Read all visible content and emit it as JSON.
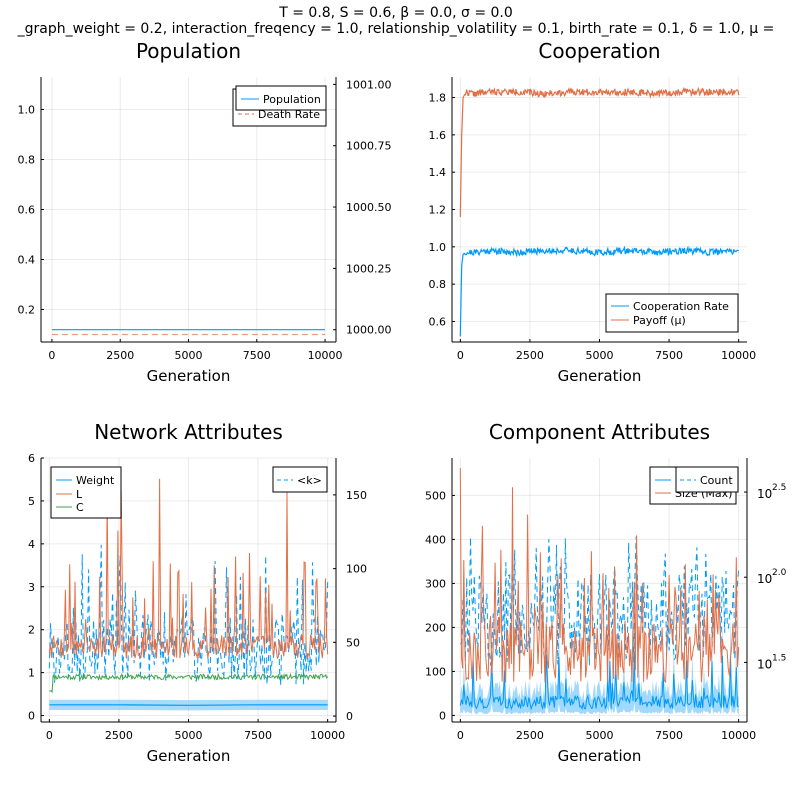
{
  "figure": {
    "title_line1": "T = 0.8, S = 0.6, β = 0.0, σ = 0.0",
    "title_line2": "_graph_weight = 0.2, interaction_freqency = 1.0, relationship_volatility = 0.1, birth_rate = 0.1, δ = 1.0, μ ="
  },
  "colors": {
    "blue": "#009AFA",
    "orange": "#E26F46",
    "green": "#3EA44E",
    "band": "#80CCFA"
  },
  "chart_data": [
    {
      "type": "line",
      "title": "Population",
      "xlabel": "Generation",
      "xlim": [
        -400,
        10400
      ],
      "xticks": [
        0,
        2500,
        5000,
        7500,
        10000
      ],
      "xtick_labels": [
        "0",
        "2500",
        "5000",
        "7500",
        "10000"
      ],
      "ylim": [
        0.07,
        1.13
      ],
      "yticks": [
        0.2,
        0.4,
        0.6,
        0.8,
        1.0
      ],
      "ytick_labels": [
        "0.2",
        "0.4",
        "0.6",
        "0.8",
        "1.0"
      ],
      "y2lim": [
        999.95,
        1001.03
      ],
      "y2ticks": [
        1000.0,
        1000.25,
        1000.5,
        1000.75,
        1001.0
      ],
      "y2tick_labels": [
        "1000.00",
        "1000.25",
        "1000.50",
        "1000.75",
        "1001.00"
      ],
      "series": [
        {
          "name": "Population",
          "axis": "right",
          "style": "solid",
          "x": [
            0,
            10000
          ],
          "values": [
            1000.0,
            1000.0
          ]
        },
        {
          "name": "Death Rate",
          "axis": "left",
          "style": "dashed",
          "x": [
            0,
            10000
          ],
          "values": [
            0.1,
            0.1
          ]
        }
      ],
      "legend": "top-right"
    },
    {
      "type": "line",
      "title": "Cooperation",
      "xlabel": "Generation",
      "xlim": [
        -300,
        10300
      ],
      "xticks": [
        0,
        2500,
        5000,
        7500,
        10000
      ],
      "xtick_labels": [
        "0",
        "2500",
        "5000",
        "7500",
        "10000"
      ],
      "ylim": [
        0.49,
        1.91
      ],
      "yticks": [
        0.6,
        0.8,
        1.0,
        1.2,
        1.4,
        1.6,
        1.8
      ],
      "ytick_labels": [
        "0.6",
        "0.8",
        "1.0",
        "1.2",
        "1.4",
        "1.6",
        "1.8"
      ],
      "series": [
        {
          "name": "Cooperation Rate",
          "x": [
            0,
            50,
            100,
            200,
            500,
            1000,
            2000,
            3000,
            4000,
            5000,
            6000,
            7000,
            8000,
            9000,
            10000
          ],
          "values": [
            0.52,
            0.9,
            0.96,
            0.97,
            0.97,
            0.98,
            0.97,
            0.98,
            0.98,
            0.97,
            0.98,
            0.97,
            0.98,
            0.97,
            0.98
          ]
        },
        {
          "name": "Payoff (μ)",
          "x": [
            0,
            50,
            100,
            200,
            500,
            1000,
            2000,
            3000,
            4000,
            5000,
            6000,
            7000,
            8000,
            9000,
            10000
          ],
          "values": [
            1.16,
            1.6,
            1.8,
            1.83,
            1.82,
            1.83,
            1.83,
            1.82,
            1.83,
            1.83,
            1.83,
            1.82,
            1.83,
            1.83,
            1.83
          ]
        }
      ],
      "legend": "bottom-right"
    },
    {
      "type": "line",
      "title": "Network Attributes",
      "xlabel": "Generation",
      "xlim": [
        -300,
        10300
      ],
      "xticks": [
        0,
        2500,
        5000,
        7500,
        10000
      ],
      "xtick_labels": [
        "0",
        "2500",
        "5000",
        "7500",
        "10000"
      ],
      "ylim": [
        -0.15,
        6.0
      ],
      "yticks": [
        0,
        1,
        2,
        3,
        4,
        5,
        6
      ],
      "ytick_labels": [
        "0",
        "1",
        "2",
        "3",
        "4",
        "5",
        "6"
      ],
      "y2lim": [
        -4,
        175
      ],
      "y2ticks": [
        0,
        50,
        100,
        150
      ],
      "y2tick_labels": [
        "0",
        "50",
        "100",
        "150"
      ],
      "series": [
        {
          "name": "Weight",
          "axis": "left",
          "style": "band",
          "x": [
            0,
            2500,
            5000,
            7500,
            10000
          ],
          "values": [
            0.25,
            0.25,
            0.24,
            0.25,
            0.25
          ],
          "band": 0.12
        },
        {
          "name": "L",
          "axis": "left",
          "style": "spiky",
          "seed": 7,
          "base": 1.6,
          "range": [
            1.15,
            5.6
          ],
          "x": [
            0,
            10000
          ]
        },
        {
          "name": "C",
          "axis": "left",
          "style": "noisy",
          "seed": 11,
          "base": 0.9,
          "range": [
            0.55,
            1.0
          ],
          "x": [
            0,
            10000
          ]
        },
        {
          "name": "<k>",
          "axis": "right",
          "style": "dashed-spiky",
          "seed": 3,
          "base": 45,
          "range": [
            5,
            168
          ],
          "x": [
            0,
            10000
          ]
        }
      ],
      "legend": "top-left"
    },
    {
      "type": "line",
      "title": "Component Attributes",
      "xlabel": "Generation",
      "xlim": [
        -300,
        10300
      ],
      "xticks": [
        0,
        2500,
        5000,
        7500,
        10000
      ],
      "xtick_labels": [
        "0",
        "2500",
        "5000",
        "7500",
        "10000"
      ],
      "ylim": [
        -15,
        585
      ],
      "yticks": [
        0,
        100,
        200,
        300,
        400,
        500
      ],
      "ytick_labels": [
        "0",
        "100",
        "200",
        "300",
        "400",
        "500"
      ],
      "y2log": true,
      "y2lim": [
        1.15,
        2.7
      ],
      "y2ticks": [
        1.5,
        2.0,
        2.5
      ],
      "y2tick_labels": [
        "1.5",
        "2.0",
        "2.5"
      ],
      "series": [
        {
          "name": "Count",
          "axis": "right",
          "style": "dashed-spiky",
          "seed": 5,
          "base": 1.75,
          "range": [
            1.3,
            2.65
          ],
          "x": [
            0,
            10000
          ]
        },
        {
          "name": "Size (Max)",
          "axis": "left",
          "style": "spiky",
          "seed": 9,
          "base": 150,
          "range": [
            20,
            570
          ],
          "x": [
            0,
            10000
          ]
        },
        {
          "name": "Size (Mean)",
          "axis": "left",
          "style": "band-spiky",
          "seed": 13,
          "base": 30,
          "range": [
            5,
            150
          ],
          "x": [
            0,
            10000
          ]
        }
      ],
      "legend": "top-right"
    }
  ]
}
